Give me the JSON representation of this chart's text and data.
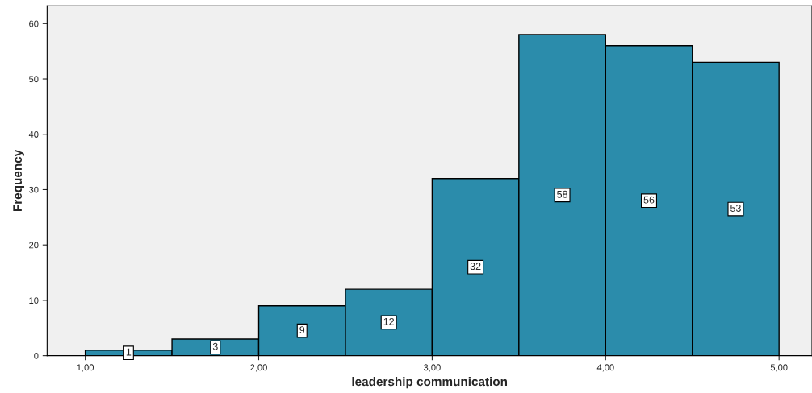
{
  "chart_data": {
    "type": "histogram",
    "xlabel": "leadership communication",
    "ylabel": "Frequency",
    "bins": [
      1.0,
      1.5,
      2.0,
      2.5,
      3.0,
      3.5,
      4.0,
      4.5,
      5.0
    ],
    "values": [
      1,
      3,
      9,
      12,
      32,
      58,
      56,
      53
    ],
    "color": "#2b8cab",
    "xlim": [
      0.78,
      5.19
    ],
    "ylim": [
      0,
      63.2
    ],
    "xticks": [
      {
        "value": 1,
        "label": "1,00"
      },
      {
        "value": 2,
        "label": "2,00"
      },
      {
        "value": 3,
        "label": "3,00"
      },
      {
        "value": 4,
        "label": "4,00"
      },
      {
        "value": 5,
        "label": "5,00"
      }
    ],
    "yticks": [
      0,
      10,
      20,
      30,
      40,
      50,
      60
    ],
    "data_labels": true,
    "grid": false,
    "legend": false
  }
}
